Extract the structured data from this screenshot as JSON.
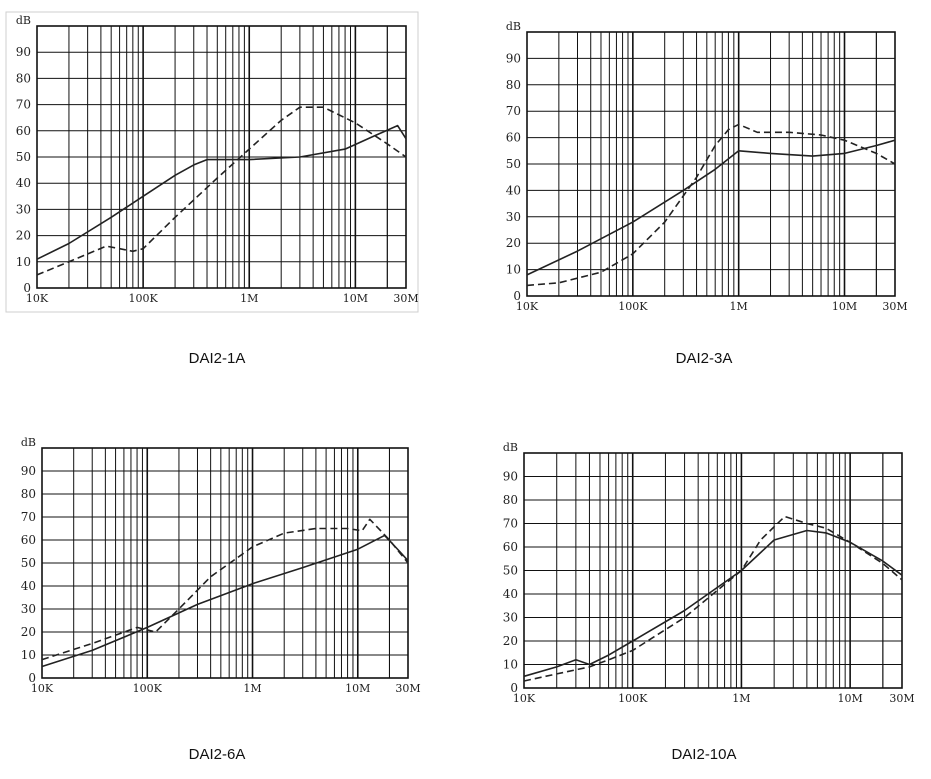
{
  "chart_data": [
    {
      "type": "line",
      "title": "DAI2-1A",
      "ylabel": "dB",
      "x_scale": "log",
      "xlim": [
        10000,
        30000000
      ],
      "ylim": [
        0,
        100
      ],
      "y_ticks": [
        0,
        10,
        20,
        30,
        40,
        50,
        60,
        70,
        80,
        90
      ],
      "x_ticks": [
        {
          "value": 10000,
          "label": "10K"
        },
        {
          "value": 100000,
          "label": "100K"
        },
        {
          "value": 1000000,
          "label": "1M"
        },
        {
          "value": 10000000,
          "label": "10M"
        },
        {
          "value": 30000000,
          "label": "30M"
        }
      ],
      "grid": true,
      "series": [
        {
          "style": "solid",
          "x": [
            10000,
            20000,
            50000,
            100000,
            200000,
            300000,
            400000,
            1000000,
            3000000,
            8000000,
            15000000,
            25000000,
            30000000
          ],
          "y": [
            11,
            17,
            27,
            35,
            43,
            47,
            49,
            49,
            50,
            53,
            58,
            62,
            57
          ]
        },
        {
          "style": "dashed",
          "x": [
            10000,
            20000,
            45000,
            80000,
            100000,
            200000,
            500000,
            1000000,
            2000000,
            3000000,
            5000000,
            10000000,
            20000000,
            30000000
          ],
          "y": [
            5,
            10,
            16,
            14,
            15,
            27,
            42,
            53,
            64,
            69,
            69,
            63,
            55,
            50
          ]
        }
      ]
    },
    {
      "type": "line",
      "title": "DAI2-3A",
      "ylabel": "dB",
      "x_scale": "log",
      "xlim": [
        10000,
        30000000
      ],
      "ylim": [
        0,
        100
      ],
      "y_ticks": [
        0,
        10,
        20,
        30,
        40,
        50,
        60,
        70,
        80,
        90
      ],
      "x_ticks": [
        {
          "value": 10000,
          "label": "10K"
        },
        {
          "value": 100000,
          "label": "100K"
        },
        {
          "value": 1000000,
          "label": "1M"
        },
        {
          "value": 10000000,
          "label": "10M"
        },
        {
          "value": 30000000,
          "label": "30M"
        }
      ],
      "grid": true,
      "series": [
        {
          "style": "solid",
          "x": [
            10000,
            30000,
            100000,
            300000,
            600000,
            1000000,
            2000000,
            5000000,
            10000000,
            20000000,
            30000000
          ],
          "y": [
            8,
            17,
            28,
            40,
            48,
            55,
            54,
            53,
            54,
            57,
            59
          ]
        },
        {
          "style": "dashed",
          "x": [
            10000,
            20000,
            50000,
            100000,
            200000,
            400000,
            600000,
            800000,
            1000000,
            1500000,
            3000000,
            6000000,
            10000000,
            20000000,
            30000000
          ],
          "y": [
            4,
            5,
            9,
            16,
            28,
            45,
            57,
            63,
            65,
            62,
            62,
            61,
            59,
            54,
            50
          ]
        }
      ]
    },
    {
      "type": "line",
      "title": "DAI2-6A",
      "ylabel": "dB",
      "x_scale": "log",
      "xlim": [
        10000,
        30000000
      ],
      "ylim": [
        0,
        100
      ],
      "y_ticks": [
        0,
        10,
        20,
        30,
        40,
        50,
        60,
        70,
        80,
        90
      ],
      "x_ticks": [
        {
          "value": 10000,
          "label": "10K"
        },
        {
          "value": 100000,
          "label": "100K"
        },
        {
          "value": 1000000,
          "label": "1M"
        },
        {
          "value": 10000000,
          "label": "10M"
        },
        {
          "value": 30000000,
          "label": "30M"
        }
      ],
      "grid": true,
      "series": [
        {
          "style": "solid",
          "x": [
            10000,
            30000,
            100000,
            300000,
            1000000,
            3000000,
            10000000,
            18000000,
            25000000,
            30000000
          ],
          "y": [
            5,
            12,
            22,
            32,
            41,
            48,
            56,
            62,
            55,
            51
          ]
        },
        {
          "style": "dashed",
          "x": [
            10000,
            30000,
            80000,
            120000,
            200000,
            400000,
            1000000,
            2000000,
            4000000,
            8000000,
            11000000,
            13000000,
            20000000,
            30000000
          ],
          "y": [
            8,
            15,
            22,
            20,
            30,
            44,
            57,
            63,
            65,
            65,
            64,
            69,
            60,
            50
          ]
        }
      ]
    },
    {
      "type": "line",
      "title": "DAI2-10A",
      "ylabel": "dB",
      "x_scale": "log",
      "xlim": [
        10000,
        30000000
      ],
      "ylim": [
        0,
        100
      ],
      "y_ticks": [
        0,
        10,
        20,
        30,
        40,
        50,
        60,
        70,
        80,
        90
      ],
      "x_ticks": [
        {
          "value": 10000,
          "label": "10K"
        },
        {
          "value": 100000,
          "label": "100K"
        },
        {
          "value": 1000000,
          "label": "1M"
        },
        {
          "value": 10000000,
          "label": "10M"
        },
        {
          "value": 30000000,
          "label": "30M"
        }
      ],
      "grid": true,
      "series": [
        {
          "style": "solid",
          "x": [
            10000,
            20000,
            30000,
            40000,
            60000,
            100000,
            300000,
            1000000,
            2000000,
            4000000,
            6000000,
            10000000,
            20000000,
            30000000
          ],
          "y": [
            5,
            9,
            12,
            10,
            14,
            20,
            33,
            50,
            63,
            67,
            66,
            62,
            54,
            48
          ]
        },
        {
          "style": "dashed",
          "x": [
            10000,
            20000,
            40000,
            60000,
            100000,
            300000,
            1000000,
            1500000,
            2500000,
            4000000,
            6000000,
            10000000,
            20000000,
            30000000
          ],
          "y": [
            3,
            6,
            9,
            12,
            16,
            30,
            50,
            63,
            73,
            70,
            68,
            62,
            53,
            46
          ]
        }
      ]
    }
  ]
}
